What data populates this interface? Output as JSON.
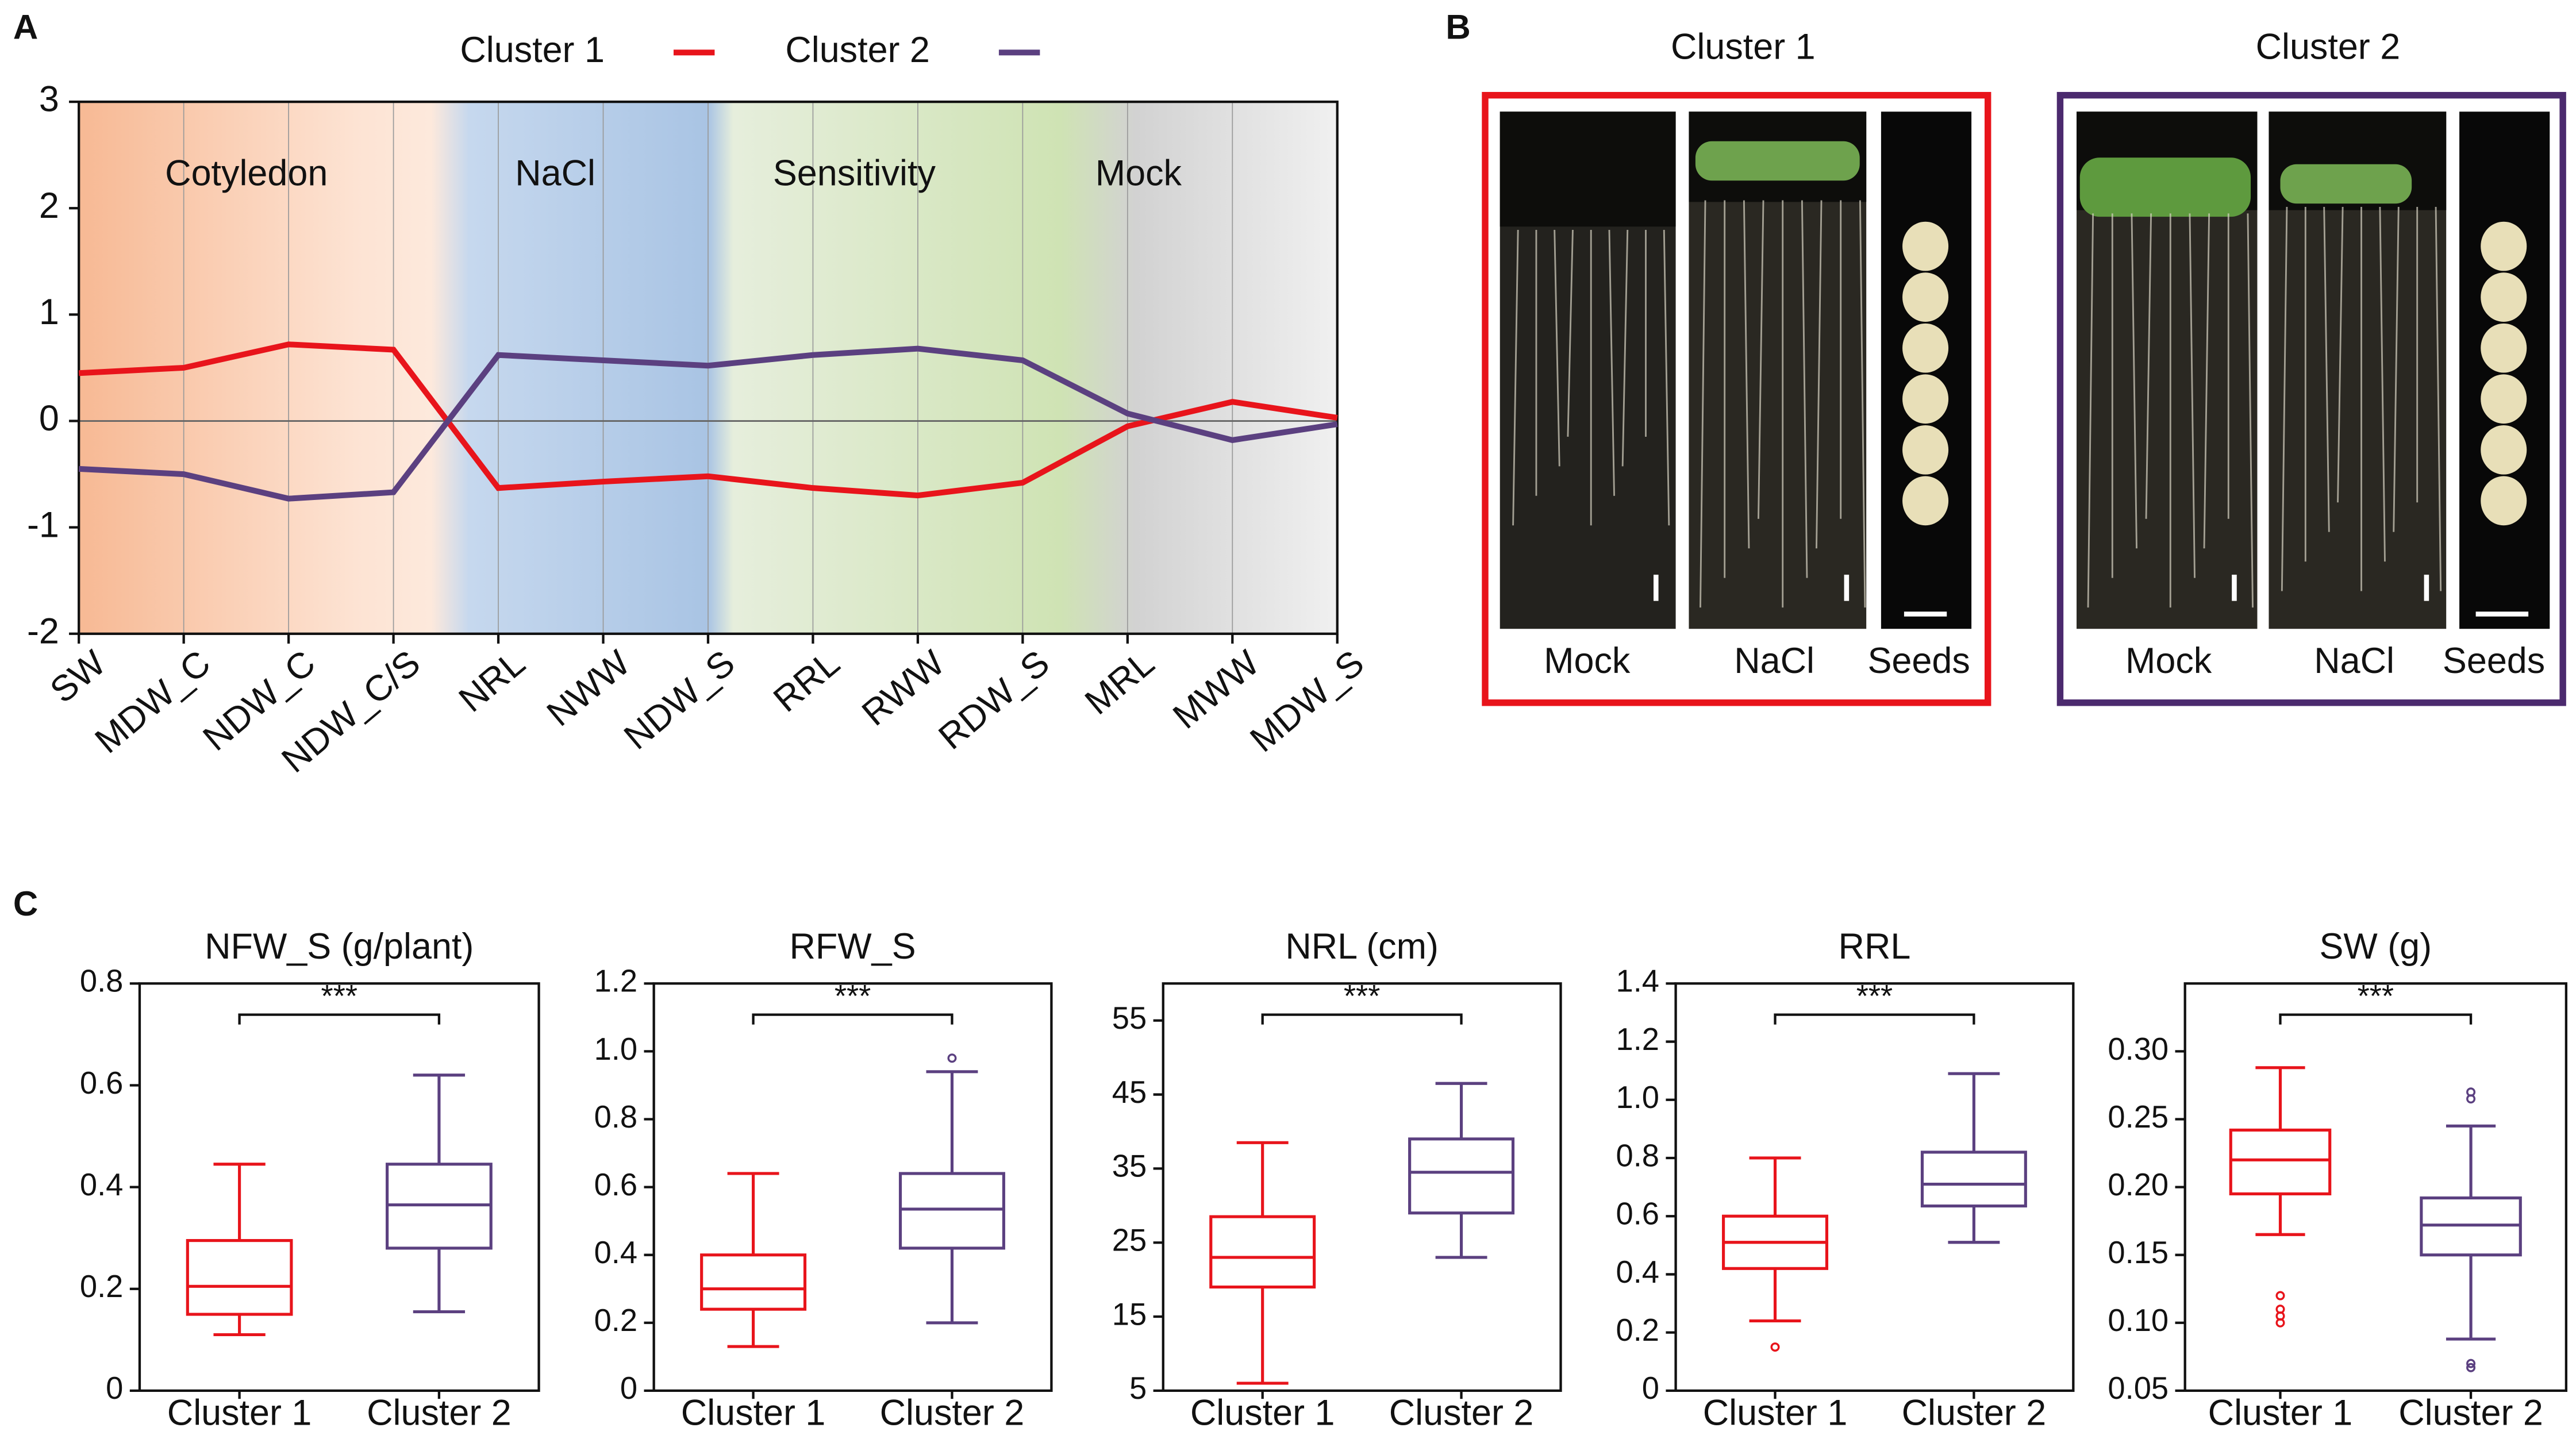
{
  "panels": {
    "a": "A",
    "b": "B",
    "c": "C"
  },
  "photo_panel": {
    "groups": [
      {
        "title": "Cluster 1",
        "labels": [
          "Mock",
          "NaCl",
          "Seeds"
        ]
      },
      {
        "title": "Cluster 2",
        "labels": [
          "Mock",
          "NaCl",
          "Seeds"
        ]
      }
    ]
  },
  "chart_data": [
    {
      "type": "line",
      "categories": [
        "SW",
        "MDW_C",
        "NDW_C",
        "NDW_C/S",
        "NRL",
        "NWW",
        "NDW_S",
        "RRL",
        "RWW",
        "RDW_S",
        "MRL",
        "MWW",
        "MDW_S"
      ],
      "series": [
        {
          "name": "Cluster 1",
          "color": "#e8141b",
          "values": [
            0.45,
            0.5,
            0.72,
            0.67,
            -0.63,
            -0.57,
            -0.52,
            -0.63,
            -0.7,
            -0.58,
            -0.05,
            0.18,
            0.03
          ]
        },
        {
          "name": "Cluster 2",
          "color": "#5b4080",
          "values": [
            -0.45,
            -0.5,
            -0.73,
            -0.67,
            0.62,
            0.57,
            0.52,
            0.62,
            0.68,
            0.57,
            0.07,
            -0.18,
            -0.03
          ]
        }
      ],
      "ylim": [
        -2,
        3
      ],
      "yticks": [
        -2,
        -1,
        0,
        1,
        2,
        3
      ],
      "annotations": [
        "Cotyledon",
        "NaCl",
        "Sensitivity",
        "Mock"
      ],
      "legend": "top"
    },
    {
      "type": "box",
      "title": "NFW_S (g/plant)",
      "annotation": "***",
      "ylim": [
        0,
        0.8
      ],
      "yticks": [
        0,
        0.2,
        0.4,
        0.6,
        0.8
      ],
      "series": [
        {
          "name": "Cluster 1",
          "color": "#e8141b",
          "min": 0.11,
          "q1": 0.15,
          "median": 0.205,
          "q3": 0.295,
          "max": 0.445,
          "outliers": []
        },
        {
          "name": "Cluster 2",
          "color": "#5b4080",
          "min": 0.155,
          "q1": 0.28,
          "median": 0.365,
          "q3": 0.445,
          "max": 0.62,
          "outliers": []
        }
      ]
    },
    {
      "type": "box",
      "title": "RFW_S",
      "annotation": "***",
      "ylim": [
        0,
        1.2
      ],
      "yticks": [
        0,
        0.2,
        0.4,
        0.6,
        0.8,
        {
          "value": 1,
          "label": "1.0"
        },
        1.2
      ],
      "series": [
        {
          "name": "Cluster 1",
          "color": "#e8141b",
          "min": 0.13,
          "q1": 0.24,
          "median": 0.3,
          "q3": 0.4,
          "max": 0.64,
          "outliers": []
        },
        {
          "name": "Cluster 2",
          "color": "#5b4080",
          "min": 0.2,
          "q1": 0.42,
          "median": 0.535,
          "q3": 0.64,
          "max": 0.94,
          "outliers": [
            0.98
          ]
        }
      ]
    },
    {
      "type": "box",
      "title": "NRL (cm)",
      "annotation": "***",
      "ylim": [
        5,
        60
      ],
      "yticks": [
        5,
        15,
        25,
        35,
        45,
        55
      ],
      "series": [
        {
          "name": "Cluster 1",
          "color": "#e8141b",
          "min": 6,
          "q1": 19,
          "median": 23,
          "q3": 28.5,
          "max": 38.5,
          "outliers": []
        },
        {
          "name": "Cluster 2",
          "color": "#5b4080",
          "min": 23,
          "q1": 29,
          "median": 34.5,
          "q3": 39,
          "max": 46.5,
          "outliers": []
        }
      ]
    },
    {
      "type": "box",
      "title": "RRL",
      "annotation": "***",
      "ylim": [
        0,
        1.4
      ],
      "yticks": [
        0,
        0.2,
        0.4,
        0.6,
        0.8,
        {
          "value": 1,
          "label": "1.0"
        },
        1.2,
        1.4
      ],
      "series": [
        {
          "name": "Cluster 1",
          "color": "#e8141b",
          "min": 0.24,
          "q1": 0.42,
          "median": 0.51,
          "q3": 0.6,
          "max": 0.8,
          "outliers": [
            0.15
          ]
        },
        {
          "name": "Cluster 2",
          "color": "#5b4080",
          "min": 0.51,
          "q1": 0.635,
          "median": 0.71,
          "q3": 0.82,
          "max": 1.09,
          "outliers": []
        }
      ]
    },
    {
      "type": "box",
      "title": "SW (g)",
      "annotation": "***",
      "ylim": [
        0.05,
        0.35
      ],
      "yticks": [
        {
          "value": 0.05,
          "label": "0.05"
        },
        {
          "value": 0.1,
          "label": "0.10"
        },
        {
          "value": 0.15,
          "label": "0.15"
        },
        {
          "value": 0.2,
          "label": "0.20"
        },
        {
          "value": 0.25,
          "label": "0.25"
        },
        {
          "value": 0.3,
          "label": "0.30"
        }
      ],
      "series": [
        {
          "name": "Cluster 1",
          "color": "#e8141b",
          "min": 0.165,
          "q1": 0.195,
          "median": 0.22,
          "q3": 0.242,
          "max": 0.288,
          "outliers": [
            0.12,
            0.11,
            0.105,
            0.1
          ]
        },
        {
          "name": "Cluster 2",
          "color": "#5b4080",
          "min": 0.088,
          "q1": 0.15,
          "median": 0.172,
          "q3": 0.192,
          "max": 0.245,
          "outliers": [
            0.27,
            0.265,
            0.07,
            0.067
          ]
        }
      ]
    }
  ]
}
